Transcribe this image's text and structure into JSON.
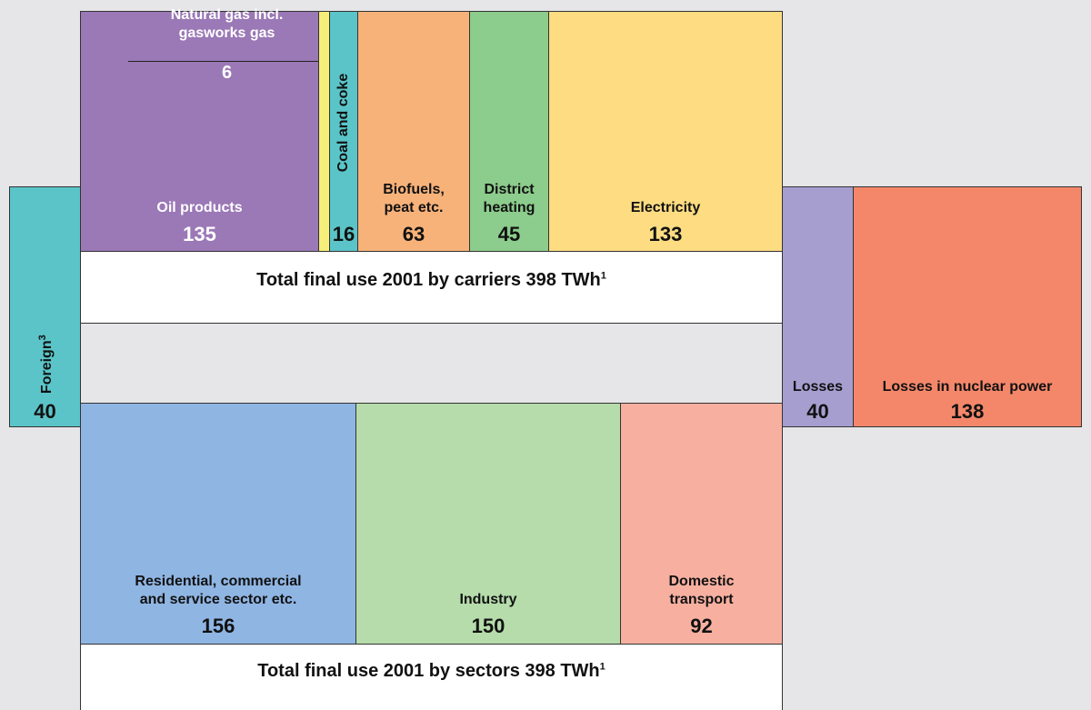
{
  "carriers": {
    "items": [
      {
        "label": [
          "Oil products"
        ],
        "value": 135
      },
      {
        "label": [
          "Natural gas incl.",
          "gasworks gas"
        ],
        "value": 6
      },
      {
        "label": [
          "Coal and coke"
        ],
        "value": 16
      },
      {
        "label": [
          "Biofuels,",
          "peat etc."
        ],
        "value": 63
      },
      {
        "label": [
          "District",
          "heating"
        ],
        "value": 45
      },
      {
        "label": [
          "Electricity"
        ],
        "value": 133
      }
    ],
    "total": {
      "text": "Total final use 2001 by carriers 398 TWh",
      "sup": "1"
    }
  },
  "foreign": {
    "label": "Foreign",
    "sup": "3",
    "value": 40
  },
  "losses": {
    "label": [
      "Losses"
    ],
    "value": 40
  },
  "nuclear_losses": {
    "label": [
      "Losses in nuclear power"
    ],
    "value": 138
  },
  "sectors": {
    "items": [
      {
        "label": [
          "Residential, commercial",
          "and service sector etc."
        ],
        "value": 156
      },
      {
        "label": [
          "Industry"
        ],
        "value": 150
      },
      {
        "label": [
          "Domestic",
          "transport"
        ],
        "value": 92
      }
    ],
    "total": {
      "text": "Total final use 2001 by sectors 398 TWh",
      "sup": "1"
    }
  }
}
